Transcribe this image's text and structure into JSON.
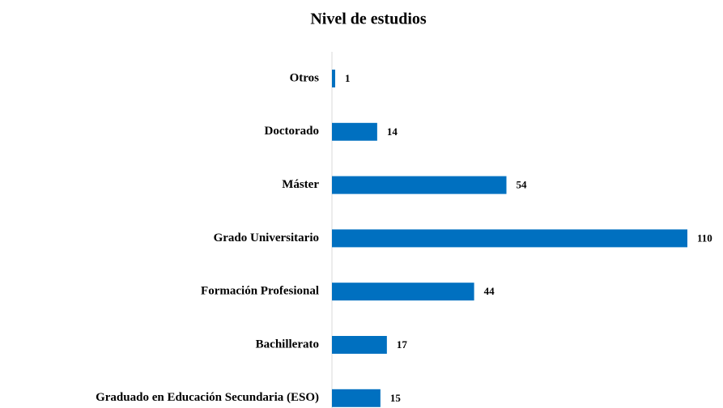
{
  "chart_data": {
    "type": "bar",
    "orientation": "horizontal",
    "title": "Nivel de estudios",
    "categories": [
      "Otros",
      "Doctorado",
      "Máster",
      "Grado Universitario",
      "Formación Profesional",
      "Bachillerato",
      "Graduado en Educación Secundaria (ESO)"
    ],
    "values": [
      1,
      14,
      54,
      110,
      44,
      17,
      15
    ],
    "color": "#0070c0"
  }
}
